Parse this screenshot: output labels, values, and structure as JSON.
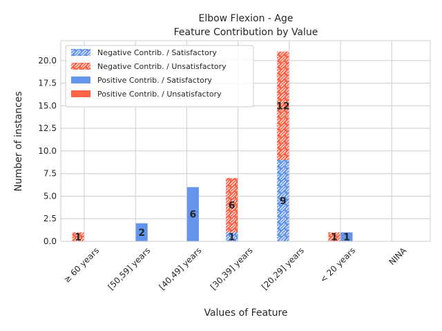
{
  "chart_data": {
    "type": "bar",
    "stacked": true,
    "title": "Elbow Flexion - Age",
    "subtitle": "Feature Contribution by Value",
    "xlabel": "Values of Feature",
    "ylabel": "Number of instances",
    "ylim": [
      0,
      22.2
    ],
    "yticks": [
      0.0,
      2.5,
      5.0,
      7.5,
      10.0,
      12.5,
      15.0,
      17.5,
      20.0
    ],
    "ytick_labels": [
      "0.0",
      "2.5",
      "5.0",
      "7.5",
      "10.0",
      "12.5",
      "15.0",
      "17.5",
      "20.0"
    ],
    "categories": [
      "≥ 60 years",
      "[50,59] years",
      "[40,49] years",
      "[30,39] years",
      "[20,29] years",
      "< 20 years",
      "NINA"
    ],
    "grid": true,
    "legend_position": "top-left",
    "colors": {
      "satisfactory": "#6495ED",
      "unsatisfactory": "#FF6347"
    },
    "series": [
      {
        "name": "Negative Contrib. / Satisfactory",
        "group": "negative",
        "hatch": true,
        "color": "#6495ED",
        "values": [
          0,
          0,
          0,
          1,
          9,
          0,
          0
        ]
      },
      {
        "name": "Negative Contrib. / Unsatisfactory",
        "group": "negative",
        "hatch": true,
        "color": "#FF6347",
        "values": [
          1,
          0,
          0,
          6,
          12,
          1,
          0
        ]
      },
      {
        "name": "Positive Contrib. / Satisfactory",
        "group": "positive",
        "hatch": false,
        "color": "#6495ED",
        "values": [
          0,
          2,
          6,
          0,
          0,
          1,
          0
        ]
      },
      {
        "name": "Positive Contrib. / Unsatisfactory",
        "group": "positive",
        "hatch": false,
        "color": "#FF6347",
        "values": [
          0,
          0,
          0,
          0,
          0,
          0,
          0
        ]
      }
    ]
  }
}
